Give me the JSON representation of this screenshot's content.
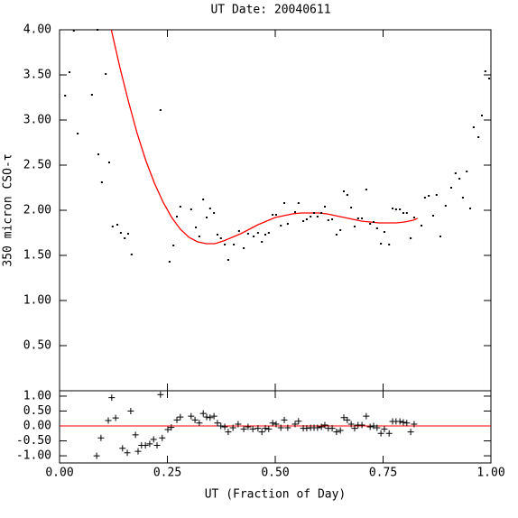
{
  "chart_data": [
    {
      "type": "scatter",
      "title": "UT Date: 20040611",
      "y_label": "350 micron CSO-τ",
      "color": "#000000",
      "x": [
        0.013,
        0.023,
        0.033,
        0.042,
        0.075,
        0.088,
        0.107,
        0.09,
        0.098,
        0.115,
        0.123,
        0.134,
        0.142,
        0.151,
        0.159,
        0.167,
        0.234,
        0.255,
        0.264,
        0.272,
        0.28,
        0.305,
        0.316,
        0.324,
        0.333,
        0.341,
        0.349,
        0.358,
        0.366,
        0.374,
        0.383,
        0.391,
        0.404,
        0.416,
        0.427,
        0.437,
        0.45,
        0.46,
        0.469,
        0.477,
        0.485,
        0.494,
        0.502,
        0.513,
        0.521,
        0.529,
        0.546,
        0.554,
        0.565,
        0.573,
        0.582,
        0.59,
        0.598,
        0.607,
        0.615,
        0.623,
        0.632,
        0.642,
        0.651,
        0.659,
        0.667,
        0.676,
        0.684,
        0.692,
        0.701,
        0.711,
        0.72,
        0.728,
        0.736,
        0.745,
        0.753,
        0.764,
        0.772,
        0.78,
        0.789,
        0.797,
        0.805,
        0.814,
        0.822,
        0.839,
        0.847,
        0.856,
        0.866,
        0.874,
        0.883,
        0.895,
        0.908,
        0.918,
        0.927,
        0.935,
        0.944,
        0.952,
        0.96,
        0.971,
        0.979,
        0.987,
        0.996
      ],
      "values": [
        3.27,
        3.53,
        3.99,
        2.85,
        3.28,
        4.0,
        3.51,
        2.62,
        2.31,
        2.53,
        1.82,
        1.84,
        1.75,
        1.69,
        1.74,
        1.51,
        3.11,
        1.43,
        1.61,
        1.93,
        2.04,
        2.01,
        1.81,
        1.71,
        2.12,
        1.92,
        2.02,
        1.97,
        1.73,
        1.69,
        1.62,
        1.45,
        1.62,
        1.77,
        1.58,
        1.74,
        1.71,
        1.75,
        1.65,
        1.73,
        1.75,
        1.95,
        1.95,
        1.83,
        2.08,
        1.85,
        1.98,
        2.08,
        1.88,
        1.9,
        1.93,
        1.97,
        1.93,
        1.97,
        2.04,
        1.89,
        1.9,
        1.73,
        1.78,
        2.21,
        2.17,
        2.03,
        1.82,
        1.91,
        1.91,
        2.23,
        1.85,
        1.87,
        1.8,
        1.63,
        1.76,
        1.62,
        2.02,
        2.01,
        2.01,
        1.97,
        1.97,
        1.69,
        1.92,
        1.83,
        2.14,
        2.16,
        1.94,
        2.17,
        1.71,
        2.05,
        2.25,
        2.41,
        2.35,
        2.14,
        2.43,
        2.02,
        2.92,
        2.81,
        3.05,
        3.54,
        3.46
      ],
      "fit": {
        "color": "#ff0000",
        "x": [
          0.12,
          0.14,
          0.16,
          0.18,
          0.2,
          0.22,
          0.24,
          0.26,
          0.28,
          0.3,
          0.32,
          0.34,
          0.36,
          0.38,
          0.4,
          0.42,
          0.44,
          0.46,
          0.48,
          0.5,
          0.52,
          0.54,
          0.56,
          0.58,
          0.6,
          0.62,
          0.64,
          0.66,
          0.68,
          0.7,
          0.72,
          0.74,
          0.76,
          0.78,
          0.8,
          0.82,
          0.83
        ],
        "values": [
          4.0,
          3.58,
          3.2,
          2.85,
          2.55,
          2.3,
          2.09,
          1.92,
          1.79,
          1.7,
          1.65,
          1.63,
          1.63,
          1.66,
          1.7,
          1.74,
          1.79,
          1.84,
          1.88,
          1.92,
          1.94,
          1.96,
          1.97,
          1.97,
          1.97,
          1.96,
          1.94,
          1.92,
          1.9,
          1.88,
          1.87,
          1.86,
          1.86,
          1.86,
          1.87,
          1.89,
          1.91
        ]
      },
      "xlim": [
        0,
        1
      ],
      "ylim": [
        0,
        4
      ],
      "xticks": [
        0,
        0.25,
        0.5,
        0.75,
        1
      ],
      "yticks": [
        {
          "value": 0.5,
          "label": "0.50"
        },
        {
          "value": 1,
          "label": "1.00"
        },
        {
          "value": 1.5,
          "label": "1.50"
        },
        {
          "value": 2,
          "label": "2.00"
        },
        {
          "value": 2.5,
          "label": "2.50"
        },
        {
          "value": 3,
          "label": "3.00"
        },
        {
          "value": 3.5,
          "label": "3.50"
        },
        {
          "value": 4,
          "label": "4.00"
        }
      ]
    },
    {
      "type": "scatter",
      "marker": "+",
      "x_label": "UT (Fraction of Day)",
      "color": "#000000",
      "reference_line": 0,
      "reference_color": "#ff0000",
      "x": [
        0.086,
        0.096,
        0.113,
        0.121,
        0.13,
        0.146,
        0.157,
        0.165,
        0.176,
        0.182,
        0.19,
        0.199,
        0.209,
        0.218,
        0.226,
        0.234,
        0.238,
        0.251,
        0.259,
        0.272,
        0.28,
        0.305,
        0.314,
        0.324,
        0.333,
        0.341,
        0.349,
        0.358,
        0.366,
        0.374,
        0.383,
        0.391,
        0.402,
        0.414,
        0.427,
        0.437,
        0.448,
        0.46,
        0.469,
        0.477,
        0.485,
        0.494,
        0.502,
        0.513,
        0.521,
        0.529,
        0.546,
        0.554,
        0.565,
        0.573,
        0.582,
        0.59,
        0.598,
        0.607,
        0.615,
        0.623,
        0.632,
        0.642,
        0.651,
        0.659,
        0.667,
        0.676,
        0.684,
        0.692,
        0.701,
        0.711,
        0.72,
        0.728,
        0.736,
        0.745,
        0.753,
        0.764,
        0.772,
        0.78,
        0.789,
        0.797,
        0.805,
        0.814,
        0.822
      ],
      "values": [
        -1.0,
        -0.4,
        0.18,
        0.95,
        0.27,
        -0.75,
        -0.9,
        0.5,
        -0.3,
        -0.85,
        -0.65,
        -0.65,
        -0.6,
        -0.45,
        -0.65,
        1.05,
        -0.4,
        -0.12,
        -0.05,
        0.2,
        0.3,
        0.33,
        0.2,
        0.1,
        0.42,
        0.3,
        0.28,
        0.33,
        0.1,
        0.0,
        -0.03,
        -0.2,
        -0.06,
        0.06,
        -0.1,
        -0.03,
        -0.1,
        -0.08,
        -0.2,
        -0.08,
        -0.1,
        0.1,
        0.06,
        -0.06,
        0.2,
        -0.06,
        0.06,
        0.16,
        -0.08,
        -0.08,
        -0.06,
        -0.06,
        -0.06,
        -0.03,
        0.03,
        -0.08,
        -0.08,
        -0.2,
        -0.15,
        0.28,
        0.2,
        0.06,
        -0.08,
        0.03,
        0.03,
        0.33,
        -0.03,
        0.0,
        -0.06,
        -0.25,
        -0.1,
        -0.25,
        0.15,
        0.15,
        0.15,
        0.12,
        0.1,
        -0.2,
        0.06
      ],
      "xlim": [
        0,
        1
      ],
      "ylim": [
        -1.24,
        1.18
      ],
      "xticks": [
        {
          "value": 0,
          "label": "0.00"
        },
        {
          "value": 0.25,
          "label": "0.25"
        },
        {
          "value": 0.5,
          "label": "0.50"
        },
        {
          "value": 0.75,
          "label": "0.75"
        },
        {
          "value": 1,
          "label": "1.00"
        }
      ],
      "yticks": [
        {
          "value": -1,
          "label": "-1.00"
        },
        {
          "value": -0.5,
          "label": "-0.50"
        },
        {
          "value": 0,
          "label": "0.00"
        },
        {
          "value": 0.5,
          "label": "0.50"
        },
        {
          "value": 1,
          "label": "1.00"
        }
      ]
    }
  ]
}
